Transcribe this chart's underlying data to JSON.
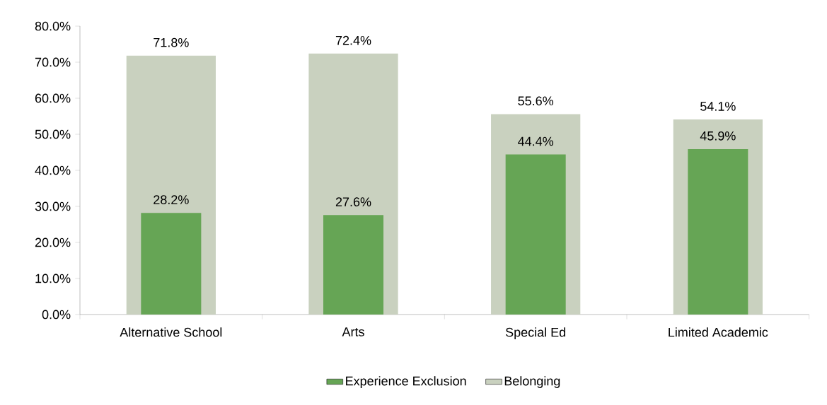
{
  "chart_data": {
    "type": "bar",
    "categories": [
      "Alternative School",
      "Arts",
      "Special Ed",
      "Limited Academic"
    ],
    "series": [
      {
        "name": "Experience Exclusion",
        "color": "#66a555",
        "values": [
          28.2,
          27.6,
          44.4,
          45.9
        ],
        "value_labels": [
          "28.2%",
          "27.6%",
          "44.4%",
          "45.9%"
        ]
      },
      {
        "name": "Belonging",
        "color": "#c9d1bf",
        "values": [
          71.8,
          72.4,
          55.6,
          54.1
        ],
        "value_labels": [
          "71.8%",
          "72.4%",
          "55.6%",
          "54.1%"
        ]
      }
    ],
    "ylim": [
      0,
      80
    ],
    "yticks": [
      {
        "value": 0,
        "label": "0.0%"
      },
      {
        "value": 10,
        "label": "10.0%"
      },
      {
        "value": 20,
        "label": "20.0%"
      },
      {
        "value": 30,
        "label": "30.0%"
      },
      {
        "value": 40,
        "label": "40.0%"
      },
      {
        "value": 50,
        "label": "50.0%"
      },
      {
        "value": 60,
        "label": "60.0%"
      },
      {
        "value": 70,
        "label": "70.0%"
      },
      {
        "value": 80,
        "label": "80.0%"
      }
    ],
    "grid": false,
    "legend": "bottom"
  }
}
